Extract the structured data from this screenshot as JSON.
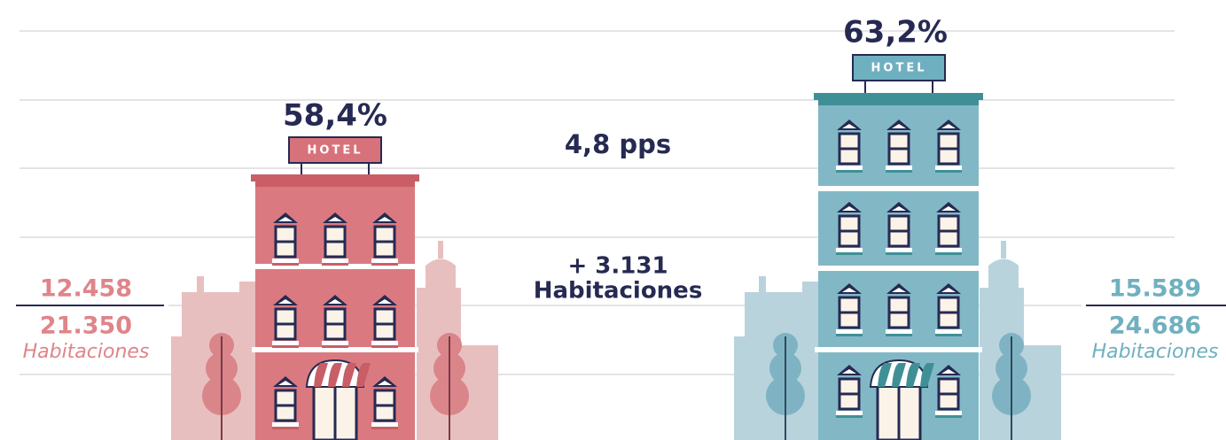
{
  "left": {
    "percentage": "58,4%",
    "sign": "HOTEL",
    "occupied": "12.458",
    "total": "21.350",
    "unit": "Habitaciones"
  },
  "right": {
    "percentage": "63,2%",
    "sign": "HOTEL",
    "occupied": "15.589",
    "total": "24.686",
    "unit": "Habitaciones"
  },
  "center": {
    "difference": "4,8 pps",
    "rooms_added": "+ 3.131",
    "rooms_unit": "Habitaciones"
  }
}
